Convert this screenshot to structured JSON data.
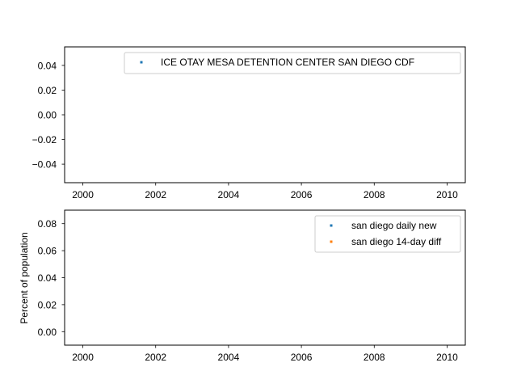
{
  "chart_data": [
    {
      "type": "scatter",
      "title": "",
      "xlabel": "",
      "ylabel": "",
      "xlim": [
        1999.5,
        2010.5
      ],
      "ylim": [
        -0.055,
        0.055
      ],
      "x_ticks": [
        "2000",
        "2002",
        "2004",
        "2006",
        "2008",
        "2010"
      ],
      "y_ticks": [
        "0.04",
        "0.02",
        "0.00",
        "−0.02",
        "−0.04"
      ],
      "grid": false,
      "legend_position": "top-right",
      "series": [
        {
          "name": "ICE OTAY MESA DETENTION CENTER SAN DIEGO CDF",
          "color": "#1f77b4",
          "x": [],
          "y": []
        }
      ]
    },
    {
      "type": "scatter",
      "title": "",
      "xlabel": "",
      "ylabel": "Percent of population",
      "xlim": [
        1999.5,
        2010.5
      ],
      "ylim": [
        -0.01,
        0.09
      ],
      "x_ticks": [
        "2000",
        "2002",
        "2004",
        "2006",
        "2008",
        "2010"
      ],
      "y_ticks": [
        "0.08",
        "0.06",
        "0.04",
        "0.02",
        "0.00"
      ],
      "grid": false,
      "legend_position": "top-right",
      "series": [
        {
          "name": "san diego daily new",
          "color": "#1f77b4",
          "x": [],
          "y": []
        },
        {
          "name": "san diego 14-day diff",
          "color": "#ff7f0e",
          "x": [],
          "y": []
        }
      ]
    }
  ]
}
